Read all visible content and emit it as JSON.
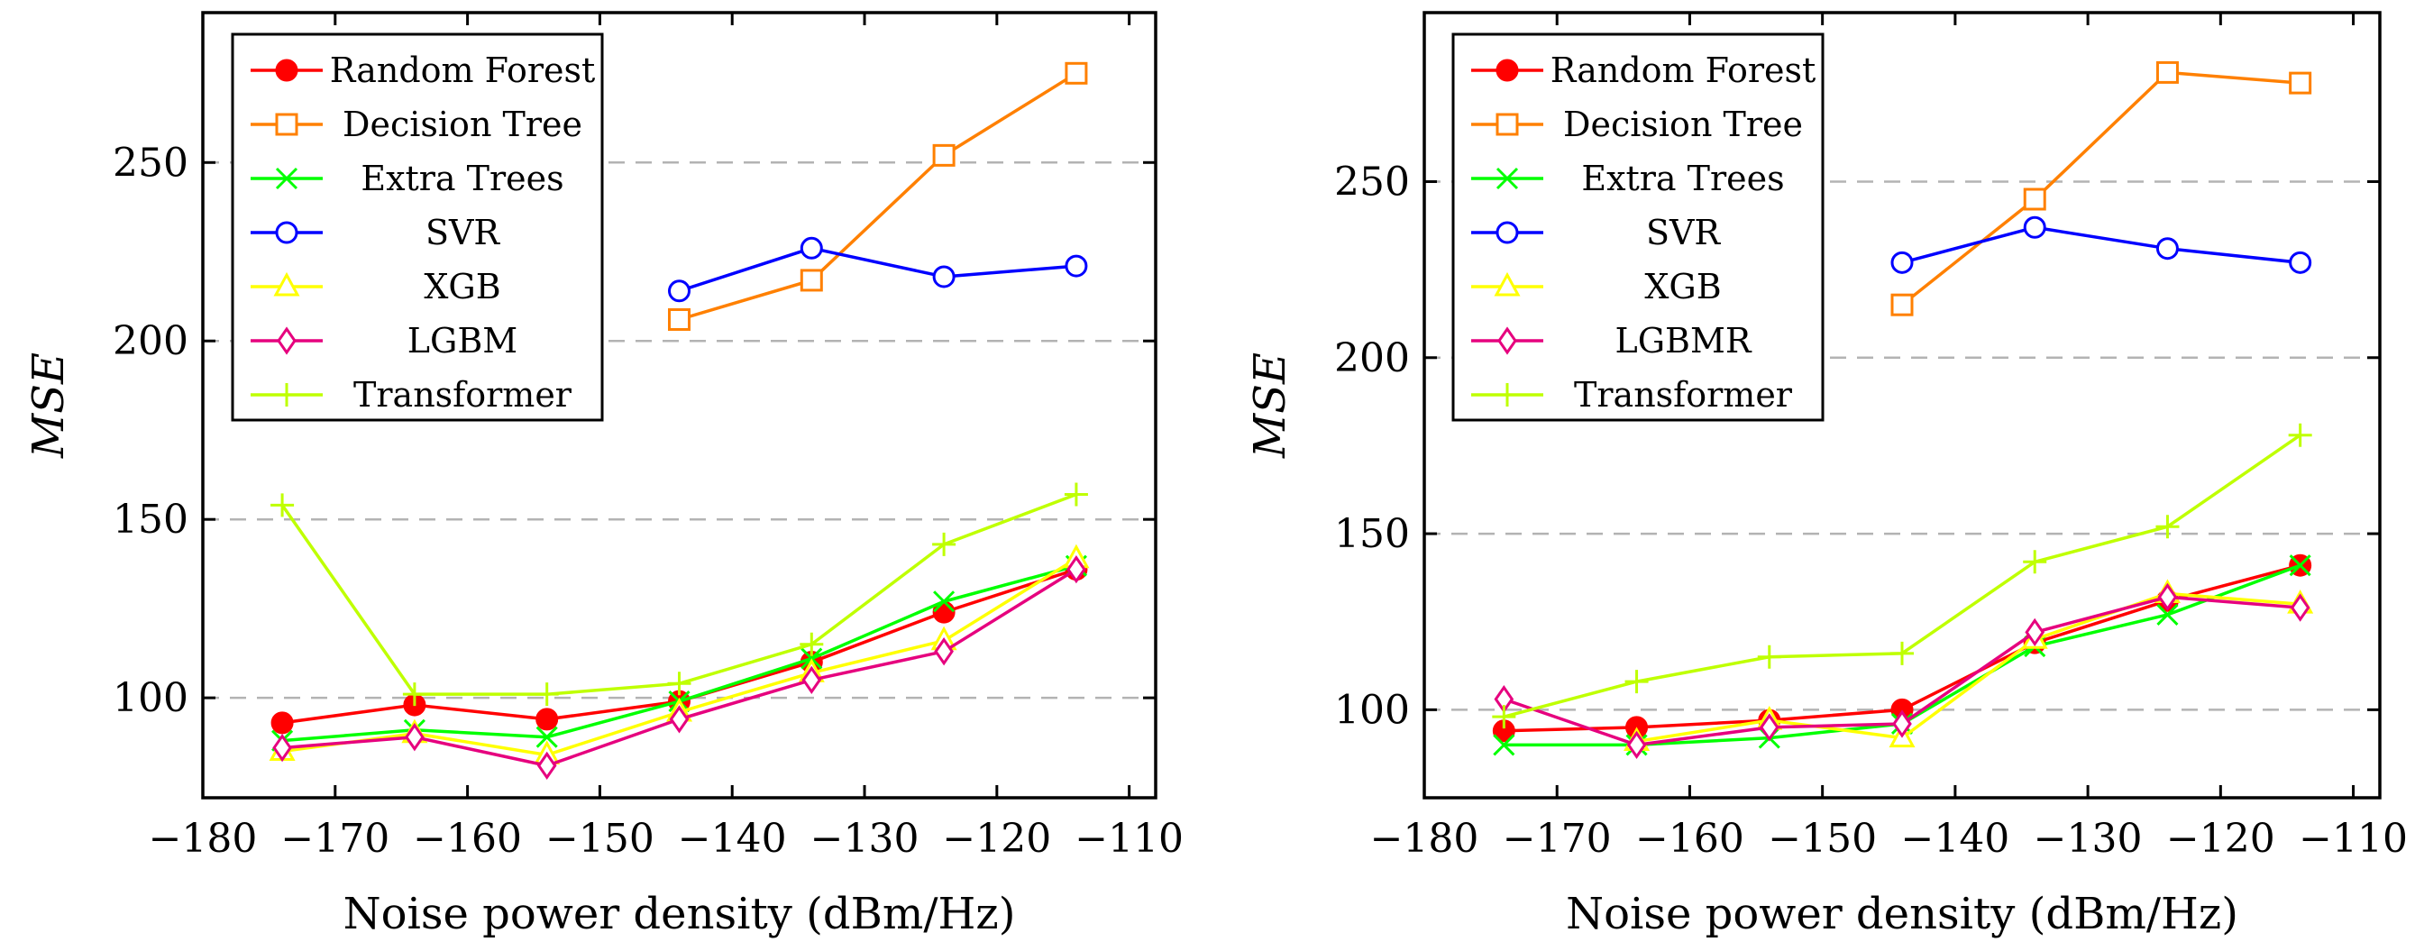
{
  "chart_data": [
    {
      "type": "line",
      "title": "",
      "xlabel": "Noise power density (dBm/Hz)",
      "ylabel": "MSE",
      "xlim": [
        -180,
        -108
      ],
      "ylim": [
        72,
        292
      ],
      "xticks": [
        -180,
        -170,
        -160,
        -150,
        -140,
        -130,
        -120,
        -110
      ],
      "yticks": [
        100,
        150,
        200,
        250
      ],
      "xtick_labels": [
        "−180",
        "−170",
        "−160",
        "−150",
        "−140",
        "−130",
        "−120",
        "−110"
      ],
      "ytick_labels": [
        "100",
        "150",
        "200",
        "250"
      ],
      "grid": "horizontal dashed",
      "legend_position": "top-left",
      "x": [
        -174,
        -164,
        -154,
        -144,
        -134,
        -124,
        -114
      ],
      "series": [
        {
          "name": "Random Forest",
          "color": "#ff0000",
          "marker": "filled-circle",
          "values": [
            93,
            98,
            94,
            99,
            110,
            124,
            136
          ]
        },
        {
          "name": "Decision Tree",
          "color": "#ff8000",
          "marker": "square",
          "values": [
            null,
            null,
            null,
            206,
            217,
            252,
            275
          ]
        },
        {
          "name": "Extra Trees",
          "color": "#00ff00",
          "marker": "x",
          "values": [
            88,
            91,
            89,
            99,
            111,
            127,
            137
          ]
        },
        {
          "name": "SVR",
          "color": "#0000ff",
          "marker": "circle",
          "values": [
            null,
            null,
            null,
            214,
            226,
            218,
            221
          ]
        },
        {
          "name": "XGB",
          "color": "#ffff00",
          "marker": "triangle",
          "values": [
            85,
            90,
            84,
            96,
            107,
            116,
            139
          ]
        },
        {
          "name": "LGBM",
          "color": "#e6007e",
          "marker": "diamond",
          "values": [
            86,
            89,
            81,
            94,
            105,
            113,
            136
          ]
        },
        {
          "name": "Transformer",
          "color": "#bfff00",
          "marker": "plus",
          "values": [
            154,
            101,
            101,
            104,
            115,
            143,
            157
          ]
        }
      ]
    },
    {
      "type": "line",
      "title": "",
      "xlabel": "Noise power density (dBm/Hz)",
      "ylabel": "MSE",
      "xlim": [
        -180,
        -108
      ],
      "ylim": [
        75,
        298
      ],
      "xticks": [
        -180,
        -170,
        -160,
        -150,
        -140,
        -130,
        -120,
        -110
      ],
      "yticks": [
        100,
        150,
        200,
        250
      ],
      "xtick_labels": [
        "−180",
        "−170",
        "−160",
        "−150",
        "−140",
        "−130",
        "−120",
        "−110"
      ],
      "ytick_labels": [
        "100",
        "150",
        "200",
        "250"
      ],
      "grid": "horizontal dashed",
      "legend_position": "top-left",
      "x": [
        -174,
        -164,
        -154,
        -144,
        -134,
        -124,
        -114
      ],
      "series": [
        {
          "name": "Random Forest",
          "color": "#ff0000",
          "marker": "filled-circle",
          "values": [
            94,
            95,
            97,
            100,
            119,
            131,
            141
          ]
        },
        {
          "name": "Decision Tree",
          "color": "#ff8000",
          "marker": "square",
          "values": [
            null,
            null,
            null,
            215,
            245,
            281,
            278
          ]
        },
        {
          "name": "Extra Trees",
          "color": "#00ff00",
          "marker": "x",
          "values": [
            90,
            90,
            92,
            96,
            118,
            127,
            141
          ]
        },
        {
          "name": "SVR",
          "color": "#0000ff",
          "marker": "circle",
          "values": [
            null,
            null,
            null,
            227,
            237,
            231,
            227
          ]
        },
        {
          "name": "XGB",
          "color": "#ffff00",
          "marker": "triangle",
          "values": [
            null,
            91,
            97,
            92,
            120,
            133,
            130
          ]
        },
        {
          "name": "LGBMR",
          "color": "#e6007e",
          "marker": "diamond",
          "values": [
            103,
            90,
            95,
            96,
            122,
            132,
            129
          ]
        },
        {
          "name": "Transformer",
          "color": "#bfff00",
          "marker": "plus",
          "values": [
            98,
            108,
            115,
            116,
            142,
            152,
            178
          ]
        }
      ]
    }
  ]
}
